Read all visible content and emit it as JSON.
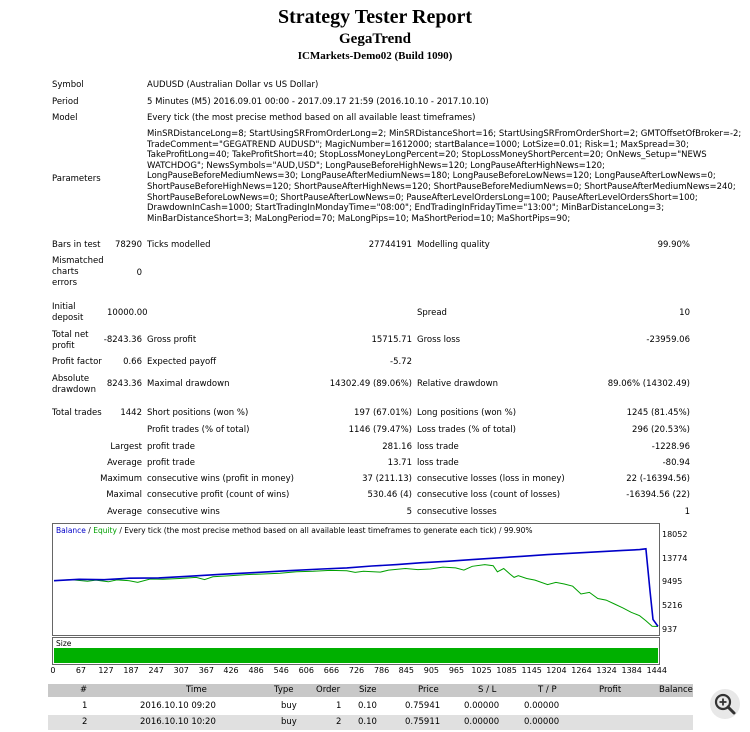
{
  "header": {
    "title": "Strategy Tester Report",
    "subtitle": "GegaTrend",
    "server": "ICMarkets-Demo02 (Build 1090)"
  },
  "info": {
    "symbol_label": "Symbol",
    "symbol_value": "AUDUSD (Australian Dollar vs US Dollar)",
    "period_label": "Period",
    "period_value": "5 Minutes (M5) 2016.09.01 00:00 - 2017.09.17 21:59 (2016.10.10 - 2017.10.10)",
    "model_label": "Model",
    "model_value": "Every tick (the most precise method based on all available least timeframes)",
    "parameters_label": "Parameters",
    "parameters_lines": [
      "MinSRDistanceLong=8; StartUsingSRFromOrderLong=2; MinSRDistanceShort=16; StartUsingSRFromOrderShort=2; GMTOffsetOfBroker=-2;",
      "TradeComment=\"GEGATREND AUDUSD\"; MagicNumber=1612000; startBalance=1000; LotSize=0.01; Risk=1; MaxSpread=30;",
      "TakeProfitLong=40; TakeProfitShort=40; StopLossMoneyLongPercent=20; StopLossMoneyShortPercent=20; OnNews_Setup=\"NEWS",
      "WATCHDOG\"; NewsSymbols=\"AUD,USD\"; LongPauseBeforeHighNews=120; LongPauseAfterHighNews=120;",
      "LongPauseBeforeMediumNews=30; LongPauseAfterMediumNews=180; LongPauseBeforeLowNews=120; LongPauseAfterLowNews=0;",
      "ShortPauseBeforeHighNews=120; ShortPauseAfterHighNews=120; ShortPauseBeforeMediumNews=0; ShortPauseAfterMediumNews=240;",
      "ShortPauseBeforeLowNews=0; ShortPauseAfterLowNews=0; PauseAfterLevelOrdersLong=100; PauseAfterLevelOrdersShort=100;",
      "DrawdownInCash=1000; StartTradingInMondayTime=\"08:00\"; EndTradingInFridayTime=\"13:00\"; MinBarDistanceLong=3;",
      "MinBarDistanceShort=3; MaLongPeriod=70; MaLongPips=10; MaShortPeriod=10; MaShortPips=90;"
    ]
  },
  "stats": {
    "bars_label": "Bars in test",
    "bars_value": "78290",
    "ticks_label": "Ticks modelled",
    "ticks_value": "27744191",
    "quality_label": "Modelling quality",
    "quality_value": "99.90%",
    "mismatched_label_1": "Mismatched",
    "mismatched_label_2": "charts",
    "mismatched_label_3": "errors",
    "mismatched_value": "0",
    "initial_label_1": "Initial",
    "initial_label_2": "deposit",
    "initial_value": "10000.00",
    "spread_label": "Spread",
    "spread_value": "10",
    "net_label_1": "Total net",
    "net_label_2": "profit",
    "net_value": "-8243.36",
    "gross_profit_label": "Gross profit",
    "gross_profit_value": "15715.71",
    "gross_loss_label": "Gross loss",
    "gross_loss_value": "-23959.06",
    "pf_label": "Profit factor",
    "pf_value": "0.66",
    "ep_label": "Expected payoff",
    "ep_value": "-5.72",
    "abs_label_1": "Absolute",
    "abs_label_2": "drawdown",
    "abs_value": "8243.36",
    "maxdd_label": "Maximal drawdown",
    "maxdd_value": "14302.49 (89.06%)",
    "reldd_label": "Relative drawdown",
    "reldd_value": "89.06% (14302.49)",
    "tt_label": "Total trades",
    "tt_value": "1442",
    "sp_label": "Short positions (won %)",
    "sp_value": "197 (67.01%)",
    "lp_label": "Long positions (won %)",
    "lp_value": "1245 (81.45%)",
    "pt_label": "Profit trades (% of total)",
    "pt_value": "1146 (79.47%)",
    "lt_label": "Loss trades (% of total)",
    "lt_value": "296 (20.53%)",
    "largest_label": "Largest",
    "largest_pt_label": "profit trade",
    "largest_pt_value": "281.16",
    "largest_lt_label": "loss trade",
    "largest_lt_value": "-1228.96",
    "average_label": "Average",
    "average_pt_label": "profit trade",
    "average_pt_value": "13.71",
    "average_lt_label": "loss trade",
    "average_lt_value": "-80.94",
    "maximum_label": "Maximum",
    "max_cw_label": "consecutive wins (profit in money)",
    "max_cw_value": "37 (211.13)",
    "max_cl_label": "consecutive losses (loss in money)",
    "max_cl_value": "22 (-16394.56)",
    "maximal_label": "Maximal",
    "mxl_cp_label": "consecutive profit (count of wins)",
    "mxl_cp_value": "530.46 (4)",
    "mxl_cl_label": "consecutive loss (count of losses)",
    "mxl_cl_value": "-16394.56 (22)",
    "avg2_label": "Average",
    "avg_cw_label": "consecutive wins",
    "avg_cw_value": "5",
    "avg_cl_label": "consecutive losses",
    "avg_cl_value": "1"
  },
  "chart_data": {
    "type": "line",
    "legend_balance": "Balance",
    "legend_sep1": " / ",
    "legend_equity": "Equity",
    "legend_rest": " / Every tick (the most precise method based on all available least timeframes to generate each tick) / 99.90%",
    "size_label": "Size",
    "balance_color": "#0000c8",
    "equity_color": "#00a000",
    "y_ticks": [
      "18052",
      "13774",
      "9495",
      "5216",
      "937"
    ],
    "x_ticks": [
      "0",
      "67",
      "127",
      "187",
      "247",
      "307",
      "367",
      "426",
      "486",
      "546",
      "606",
      "666",
      "726",
      "786",
      "845",
      "905",
      "965",
      "1025",
      "1085",
      "1145",
      "1204",
      "1264",
      "1324",
      "1384",
      "1444"
    ],
    "ylim": [
      937,
      18052
    ],
    "xlim": [
      0,
      1444
    ],
    "balance_series": [
      [
        0,
        10000
      ],
      [
        60,
        10250
      ],
      [
        120,
        10180
      ],
      [
        180,
        10450
      ],
      [
        250,
        10500
      ],
      [
        320,
        10800
      ],
      [
        400,
        11150
      ],
      [
        480,
        11450
      ],
      [
        560,
        11800
      ],
      [
        640,
        12100
      ],
      [
        700,
        12300
      ],
      [
        760,
        12650
      ],
      [
        820,
        12900
      ],
      [
        880,
        13250
      ],
      [
        940,
        13500
      ],
      [
        1000,
        13800
      ],
      [
        1060,
        14100
      ],
      [
        1120,
        14400
      ],
      [
        1180,
        14700
      ],
      [
        1240,
        14950
      ],
      [
        1300,
        15200
      ],
      [
        1360,
        15450
      ],
      [
        1400,
        15600
      ],
      [
        1415,
        15750
      ],
      [
        1425,
        8000
      ],
      [
        1432,
        3000
      ],
      [
        1444,
        1757
      ]
    ],
    "equity_series": [
      [
        0,
        10000
      ],
      [
        40,
        10200
      ],
      [
        80,
        9900
      ],
      [
        100,
        10100
      ],
      [
        130,
        9800
      ],
      [
        150,
        10150
      ],
      [
        180,
        10000
      ],
      [
        200,
        9700
      ],
      [
        230,
        10300
      ],
      [
        260,
        10250
      ],
      [
        300,
        10400
      ],
      [
        340,
        10600
      ],
      [
        360,
        10200
      ],
      [
        380,
        10700
      ],
      [
        420,
        10900
      ],
      [
        460,
        11100
      ],
      [
        500,
        11200
      ],
      [
        540,
        11350
      ],
      [
        580,
        11600
      ],
      [
        620,
        11700
      ],
      [
        660,
        11850
      ],
      [
        700,
        11800
      ],
      [
        720,
        11500
      ],
      [
        740,
        11700
      ],
      [
        780,
        11550
      ],
      [
        800,
        11900
      ],
      [
        840,
        12200
      ],
      [
        870,
        12000
      ],
      [
        900,
        12100
      ],
      [
        930,
        12450
      ],
      [
        960,
        12300
      ],
      [
        980,
        11900
      ],
      [
        1000,
        12600
      ],
      [
        1030,
        12900
      ],
      [
        1050,
        12700
      ],
      [
        1060,
        11600
      ],
      [
        1075,
        12200
      ],
      [
        1090,
        11200
      ],
      [
        1100,
        10600
      ],
      [
        1110,
        10900
      ],
      [
        1130,
        10400
      ],
      [
        1150,
        10100
      ],
      [
        1180,
        9300
      ],
      [
        1200,
        9700
      ],
      [
        1220,
        9400
      ],
      [
        1240,
        9000
      ],
      [
        1260,
        7600
      ],
      [
        1280,
        7900
      ],
      [
        1300,
        6800
      ],
      [
        1320,
        6500
      ],
      [
        1340,
        5800
      ],
      [
        1360,
        5100
      ],
      [
        1380,
        4300
      ],
      [
        1400,
        3700
      ],
      [
        1415,
        2800
      ],
      [
        1430,
        1800
      ],
      [
        1444,
        1750
      ]
    ],
    "size_value": 1
  },
  "table": {
    "headers": [
      "#",
      "Time",
      "Type",
      "Order",
      "Size",
      "Price",
      "S / L",
      "T / P",
      "Profit",
      "Balance"
    ],
    "rows": [
      [
        "1",
        "2016.10.10 09:20",
        "buy",
        "1",
        "0.10",
        "0.75941",
        "0.00000",
        "0.00000",
        "",
        ""
      ],
      [
        "2",
        "2016.10.10 10:20",
        "buy",
        "2",
        "0.10",
        "0.75911",
        "0.00000",
        "0.00000",
        "",
        ""
      ]
    ]
  },
  "icons": {
    "zoom": "magnifier-zoom-icon"
  }
}
